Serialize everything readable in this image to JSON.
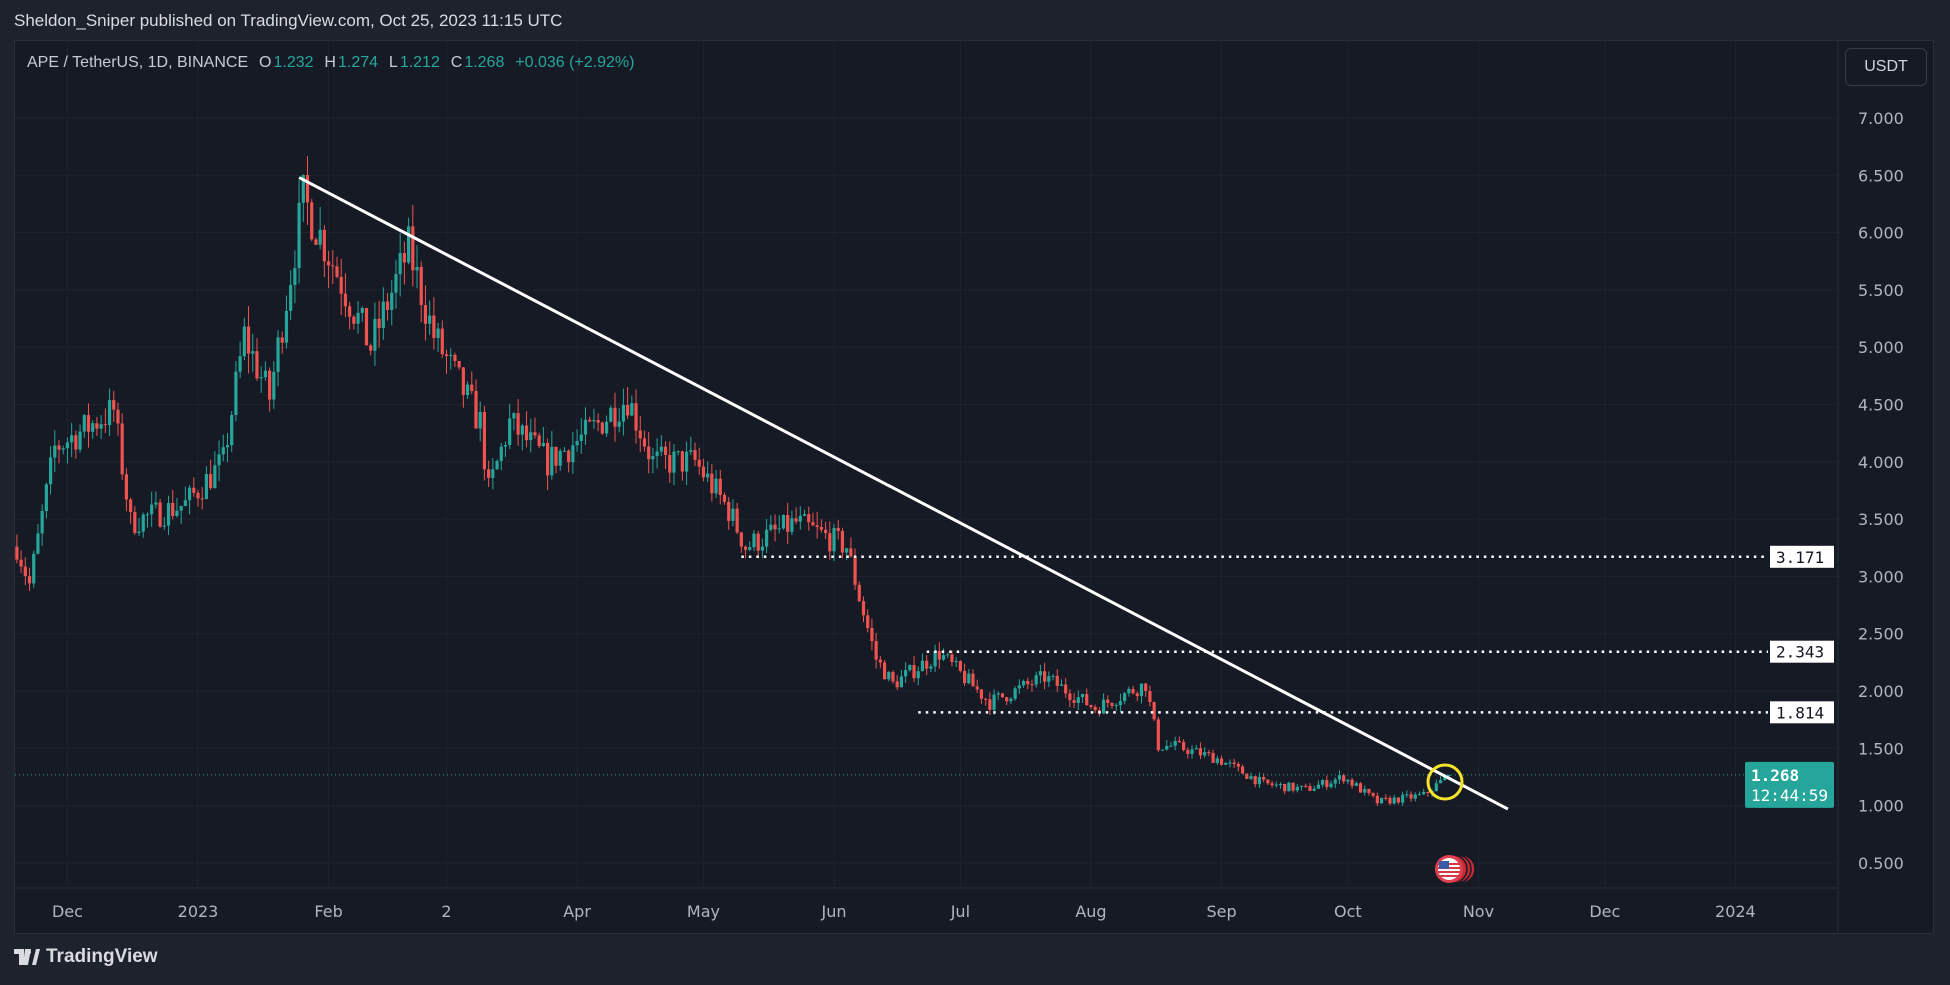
{
  "header": {
    "published": "Sheldon_Sniper published on TradingView.com, Oct 25, 2023 11:15 UTC"
  },
  "legend": {
    "symbol": "APE / TetherUS, 1D, BINANCE",
    "o_label": "O",
    "o": "1.232",
    "h_label": "H",
    "h": "1.274",
    "l_label": "L",
    "l": "1.212",
    "c_label": "C",
    "c": "1.268",
    "change": "+0.036 (+2.92%)"
  },
  "currency_button": "USDT",
  "footer": {
    "brand": "TradingView"
  },
  "colors": {
    "up": "#26a69a",
    "down": "#ef5350",
    "background": "#161a25",
    "trendline": "#ffffff",
    "highlight_circle": "#f5e52a"
  },
  "chart_data": {
    "type": "candlestick",
    "symbol": "APE/USDT",
    "interval": "1D",
    "ylim": [
      0.25,
      7.3
    ],
    "y_ticks": [
      "7.000",
      "6.500",
      "6.000",
      "5.500",
      "5.000",
      "4.500",
      "4.000",
      "3.500",
      "3.000",
      "2.500",
      "2.000",
      "1.500",
      "1.000",
      "0.500"
    ],
    "x_ticks": [
      {
        "label": "Dec",
        "date": "2022-12-01"
      },
      {
        "label": "2023",
        "date": "2023-01-01"
      },
      {
        "label": "Feb",
        "date": "2023-02-01"
      },
      {
        "label": "2",
        "date": "2023-03-01"
      },
      {
        "label": "Apr",
        "date": "2023-04-01"
      },
      {
        "label": "May",
        "date": "2023-05-01"
      },
      {
        "label": "Jun",
        "date": "2023-06-01"
      },
      {
        "label": "Jul",
        "date": "2023-07-01"
      },
      {
        "label": "Aug",
        "date": "2023-08-01"
      },
      {
        "label": "Sep",
        "date": "2023-09-01"
      },
      {
        "label": "Oct",
        "date": "2023-10-01"
      },
      {
        "label": "Nov",
        "date": "2023-11-01"
      },
      {
        "label": "Dec",
        "date": "2023-12-01"
      },
      {
        "label": "2024",
        "date": "2024-01-01"
      }
    ],
    "close_path": [
      [
        "2022-11-19",
        3.26
      ],
      [
        "2022-11-22",
        2.93
      ],
      [
        "2022-11-28",
        4.12
      ],
      [
        "2022-12-12",
        4.45
      ],
      [
        "2022-12-16",
        3.47
      ],
      [
        "2022-12-29",
        3.63
      ],
      [
        "2023-01-07",
        4.0
      ],
      [
        "2023-01-12",
        5.1
      ],
      [
        "2023-01-18",
        4.56
      ],
      [
        "2023-01-26",
        6.3
      ],
      [
        "2023-01-31",
        5.9
      ],
      [
        "2023-02-11",
        5.0
      ],
      [
        "2023-02-20",
        5.86
      ],
      [
        "2023-02-26",
        5.1
      ],
      [
        "2023-03-09",
        4.34
      ],
      [
        "2023-03-11",
        3.74
      ],
      [
        "2023-03-16",
        4.34
      ],
      [
        "2023-03-25",
        4.0
      ],
      [
        "2023-04-03",
        4.23
      ],
      [
        "2023-04-13",
        4.56
      ],
      [
        "2023-04-19",
        4.0
      ],
      [
        "2023-04-29",
        4.0
      ],
      [
        "2023-05-07",
        3.58
      ],
      [
        "2023-05-11",
        3.26
      ],
      [
        "2023-05-23",
        3.47
      ],
      [
        "2023-06-04",
        3.26
      ],
      [
        "2023-06-07",
        2.82
      ],
      [
        "2023-06-11",
        2.28
      ],
      [
        "2023-06-15",
        2.06
      ],
      [
        "2023-06-26",
        2.33
      ],
      [
        "2023-07-08",
        1.9
      ],
      [
        "2023-07-21",
        2.12
      ],
      [
        "2023-08-02",
        1.85
      ],
      [
        "2023-08-14",
        2.06
      ],
      [
        "2023-08-17",
        1.52
      ],
      [
        "2023-08-21",
        1.52
      ],
      [
        "2023-08-31",
        1.41
      ],
      [
        "2023-09-11",
        1.19
      ],
      [
        "2023-09-21",
        1.14
      ],
      [
        "2023-09-30",
        1.25
      ],
      [
        "2023-10-08",
        1.03
      ],
      [
        "2023-10-19",
        1.09
      ],
      [
        "2023-10-25",
        1.268
      ]
    ],
    "trendline": {
      "from": [
        "2023-01-25",
        6.48
      ],
      "to": [
        "2023-11-08",
        0.97
      ]
    },
    "horizontal_levels": [
      {
        "label": "3.171",
        "price": 3.171,
        "from": "2023-05-10"
      },
      {
        "label": "2.343",
        "price": 2.343,
        "from": "2023-06-23"
      },
      {
        "label": "1.814",
        "price": 1.814,
        "from": "2023-06-21"
      }
    ],
    "last_price": {
      "price": 1.268,
      "label": "1.268",
      "countdown": "12:44:59"
    },
    "annotations": [
      "highlight circle at trendline breakout (Oct 2023)",
      "US flag economic events marker"
    ]
  }
}
